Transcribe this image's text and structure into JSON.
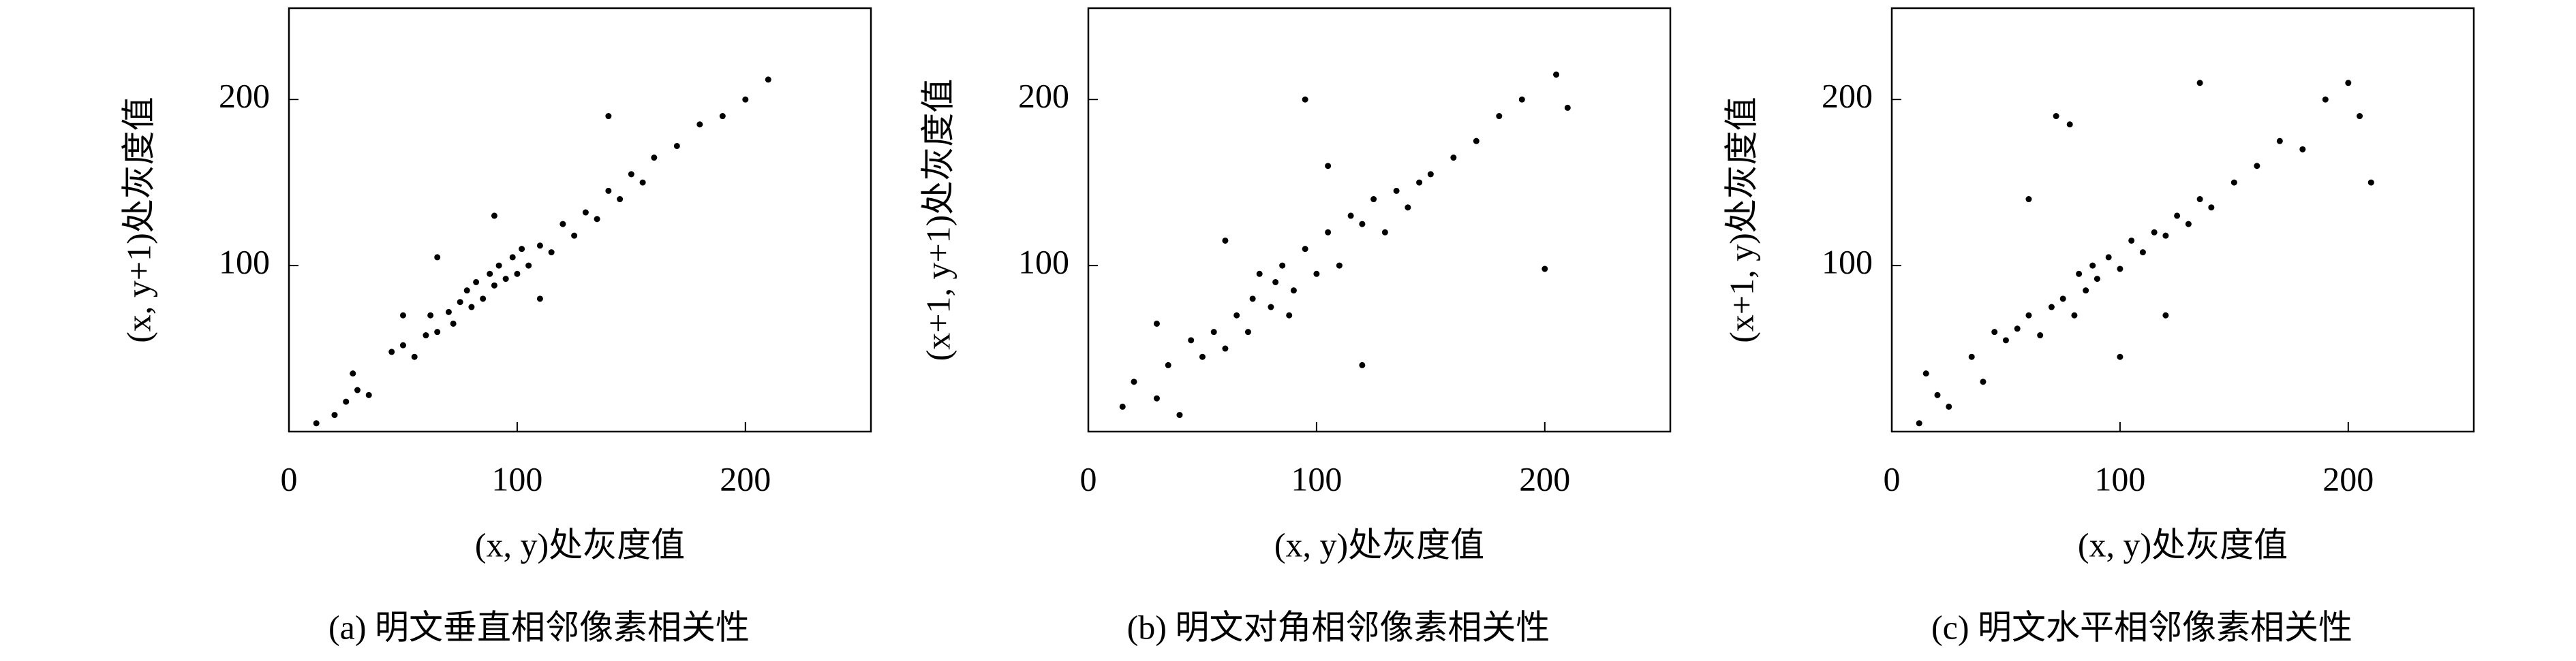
{
  "chart_data": [
    {
      "type": "scatter",
      "x_label": "(x, y)处灰度值",
      "y_label": "(x, y+1)处灰度值",
      "caption": "(a) 明文垂直相邻像素相关性",
      "color": "#000000",
      "xlim": [
        0,
        255
      ],
      "ylim": [
        0,
        255
      ],
      "xticks": [
        0,
        100,
        200
      ],
      "yticks": [
        100,
        200
      ],
      "series": [
        {
          "x": [
            12,
            20,
            25,
            30,
            28,
            35,
            45,
            50,
            55,
            60,
            62,
            65,
            70,
            72,
            75,
            78,
            80,
            82,
            85,
            88,
            90,
            92,
            95,
            98,
            100,
            102,
            105,
            110,
            115,
            120,
            125,
            130,
            135,
            140,
            145,
            150,
            155,
            160,
            170,
            180,
            190,
            200,
            210,
            65,
            110,
            140,
            50,
            90
          ],
          "values": [
            5,
            10,
            18,
            25,
            35,
            22,
            48,
            52,
            45,
            58,
            70,
            60,
            72,
            65,
            78,
            85,
            75,
            90,
            80,
            95,
            88,
            100,
            92,
            105,
            95,
            110,
            100,
            112,
            108,
            125,
            118,
            132,
            128,
            145,
            140,
            155,
            150,
            165,
            172,
            185,
            190,
            200,
            212,
            105,
            80,
            190,
            70,
            130
          ]
        }
      ]
    },
    {
      "type": "scatter",
      "x_label": "(x, y)处灰度值",
      "y_label": "(x+1, y+1)处灰度值",
      "caption": "(b) 明文对角相邻像素相关性",
      "color": "#000000",
      "xlim": [
        0,
        255
      ],
      "ylim": [
        0,
        255
      ],
      "xticks": [
        0,
        100,
        200
      ],
      "yticks": [
        100,
        200
      ],
      "series": [
        {
          "x": [
            15,
            20,
            30,
            35,
            40,
            45,
            50,
            55,
            60,
            65,
            70,
            72,
            75,
            80,
            82,
            85,
            88,
            90,
            95,
            95,
            100,
            105,
            110,
            115,
            120,
            125,
            130,
            135,
            140,
            145,
            150,
            160,
            170,
            180,
            190,
            200,
            205,
            210,
            60,
            120,
            105,
            30
          ],
          "values": [
            15,
            30,
            20,
            40,
            10,
            55,
            45,
            60,
            50,
            70,
            60,
            80,
            95,
            75,
            90,
            100,
            70,
            85,
            200,
            110,
            95,
            120,
            100,
            130,
            125,
            140,
            120,
            145,
            135,
            150,
            155,
            165,
            175,
            190,
            200,
            98,
            215,
            195,
            115,
            40,
            160,
            65
          ]
        }
      ]
    },
    {
      "type": "scatter",
      "x_label": "(x, y)处灰度值",
      "y_label": "(x+1, y)处灰度值",
      "caption": "(c) 明文水平相邻像素相关性",
      "color": "#000000",
      "xlim": [
        0,
        255
      ],
      "ylim": [
        0,
        255
      ],
      "xticks": [
        0,
        100,
        200
      ],
      "yticks": [
        100,
        200
      ],
      "series": [
        {
          "x": [
            12,
            15,
            20,
            25,
            35,
            40,
            45,
            50,
            55,
            60,
            65,
            70,
            72,
            75,
            78,
            80,
            82,
            85,
            88,
            90,
            95,
            100,
            105,
            110,
            115,
            120,
            125,
            130,
            135,
            135,
            140,
            150,
            160,
            170,
            180,
            190,
            200,
            205,
            210,
            60,
            100,
            120
          ],
          "values": [
            5,
            35,
            22,
            15,
            45,
            30,
            60,
            55,
            62,
            70,
            58,
            75,
            190,
            80,
            185,
            70,
            95,
            85,
            100,
            92,
            105,
            98,
            115,
            108,
            120,
            118,
            130,
            125,
            210,
            140,
            135,
            150,
            160,
            175,
            170,
            200,
            210,
            190,
            150,
            140,
            45,
            70
          ]
        }
      ]
    }
  ]
}
